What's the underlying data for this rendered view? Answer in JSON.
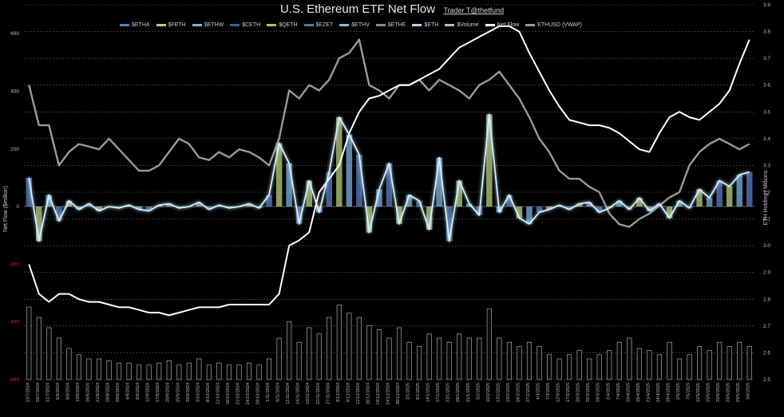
{
  "chart_data": {
    "type": "bar",
    "title": "U.S. Ethereum ETF Net Flow",
    "credit": "Trader T@thetfund",
    "ylabel": "Net Flow ($million)",
    "y2label": "ETH Holding | Millions",
    "ylim": [
      -600,
      700
    ],
    "y2lim": [
      2.5,
      3.9
    ],
    "yticks": [
      "600",
      "400",
      "200",
      "0",
      "-200",
      "-400",
      "-600"
    ],
    "y2ticks": [
      "3.9",
      "3.8",
      "3.7",
      "3.6",
      "3.5",
      "3.4",
      "3.3",
      "3.2",
      "3.1",
      "3.0",
      "2.9",
      "2.8",
      "2.7",
      "2.6",
      "2.5"
    ],
    "legend": [
      {
        "name": "$ETHA",
        "color": "#5b7fc4"
      },
      {
        "name": "$FETH",
        "color": "#b8cf7a"
      },
      {
        "name": "$ETHW",
        "color": "#7ab3e6"
      },
      {
        "name": "$CETH",
        "color": "#3f5fa0"
      },
      {
        "name": "$QETH",
        "color": "#c8c24a"
      },
      {
        "name": "$EZET",
        "color": "#4f7f9c"
      },
      {
        "name": "$ETHV",
        "color": "#8fb8e8"
      },
      {
        "name": "$ETHE",
        "color": "#8c8c8c"
      },
      {
        "name": "$ETH",
        "color": "#a8d8f0"
      },
      {
        "name": "$Volume",
        "color": "#bbbbbb"
      },
      {
        "name": "Net Flow",
        "color": "#ffffff"
      },
      {
        "name": "ETHUSD (VWAP)",
        "color": "#9a9a9a"
      }
    ],
    "x": [
      "23/7/2024",
      "26/7/2024",
      "31/7/2024",
      "5/8/2024",
      "8/8/2024",
      "13/8/2024",
      "16/8/2024",
      "21/8/2024",
      "26/8/2024",
      "29/8/2024",
      "4/9/2024",
      "9/9/2024",
      "12/9/2024",
      "17/9/2024",
      "20/9/2024",
      "25/9/2024",
      "30/9/2024",
      "3/10/2024",
      "8/10/2024",
      "11/10/2024",
      "16/10/2024",
      "21/10/2024",
      "24/10/2024",
      "29/10/2024",
      "1/11/2024",
      "6/11/2024",
      "11/11/2024",
      "14/11/2024",
      "19/11/2024",
      "22/11/2024",
      "27/11/2024",
      "3/12/2024",
      "6/12/2024",
      "11/12/2024",
      "16/12/2024",
      "19/12/2024",
      "24/12/2024",
      "30/12/2024",
      "3/1/2025",
      "8/1/2025",
      "14/1/2025",
      "17/1/2025",
      "23/1/2025",
      "28/1/2025",
      "31/1/2025",
      "5/2/2025",
      "10/2/2025",
      "13/2/2025",
      "19/2/2025",
      "24/2/2025",
      "27/2/2025",
      "4/3/2025",
      "7/3/2025",
      "12/3/2025",
      "17/3/2025",
      "20/3/2025",
      "25/3/2025",
      "28/3/2025",
      "2/4/2025",
      "7/4/2025",
      "10/4/2025",
      "15/4/2025",
      "21/4/2025",
      "24/4/2025",
      "29/4/2025",
      "2/5/2025",
      "7/5/2025",
      "12/5/2025",
      "15/5/2025",
      "20/5/2025",
      "23/5/2025",
      "29/5/2025",
      "3/6/2025"
    ],
    "net_flow": [
      100,
      -120,
      40,
      -50,
      20,
      -10,
      10,
      -15,
      0,
      -5,
      5,
      -10,
      -15,
      5,
      10,
      -5,
      0,
      15,
      -10,
      5,
      -5,
      0,
      10,
      -5,
      40,
      220,
      150,
      -60,
      90,
      -20,
      120,
      310,
      250,
      180,
      -90,
      60,
      150,
      -60,
      40,
      20,
      -80,
      170,
      -120,
      90,
      10,
      -30,
      320,
      -20,
      40,
      -40,
      -60,
      -20,
      -10,
      5,
      -10,
      10,
      15,
      -20,
      -5,
      20,
      -10,
      30,
      -15,
      10,
      -40,
      20,
      -5,
      60,
      30,
      90,
      70,
      110,
      120
    ],
    "eth_holding": [
      2.93,
      2.82,
      2.79,
      2.82,
      2.82,
      2.8,
      2.79,
      2.79,
      2.78,
      2.77,
      2.77,
      2.76,
      2.75,
      2.75,
      2.74,
      2.75,
      2.76,
      2.77,
      2.77,
      2.77,
      2.78,
      2.78,
      2.78,
      2.78,
      2.78,
      2.82,
      3.0,
      3.02,
      3.05,
      3.2,
      3.25,
      3.3,
      3.42,
      3.5,
      3.55,
      3.56,
      3.58,
      3.6,
      3.6,
      3.62,
      3.64,
      3.66,
      3.7,
      3.74,
      3.76,
      3.78,
      3.8,
      3.82,
      3.82,
      3.8,
      3.72,
      3.65,
      3.58,
      3.52,
      3.47,
      3.46,
      3.45,
      3.45,
      3.44,
      3.42,
      3.39,
      3.36,
      3.35,
      3.42,
      3.48,
      3.5,
      3.48,
      3.47,
      3.5,
      3.53,
      3.58,
      3.68,
      3.77
    ],
    "ethusd_vwap": [
      3.6,
      3.45,
      3.45,
      3.3,
      3.35,
      3.38,
      3.37,
      3.36,
      3.4,
      3.36,
      3.32,
      3.28,
      3.28,
      3.3,
      3.35,
      3.4,
      3.38,
      3.33,
      3.32,
      3.35,
      3.33,
      3.36,
      3.35,
      3.33,
      3.3,
      3.4,
      3.58,
      3.55,
      3.6,
      3.58,
      3.62,
      3.7,
      3.72,
      3.77,
      3.6,
      3.58,
      3.55,
      3.6,
      3.6,
      3.62,
      3.58,
      3.62,
      3.6,
      3.58,
      3.55,
      3.6,
      3.62,
      3.65,
      3.6,
      3.55,
      3.48,
      3.4,
      3.35,
      3.28,
      3.25,
      3.25,
      3.22,
      3.2,
      3.12,
      3.08,
      3.07,
      3.1,
      3.12,
      3.15,
      3.18,
      3.2,
      3.3,
      3.35,
      3.38,
      3.4,
      3.38,
      3.36,
      3.38
    ],
    "volume": [
      0.35,
      0.3,
      0.25,
      0.2,
      0.15,
      0.12,
      0.1,
      0.1,
      0.09,
      0.08,
      0.08,
      0.07,
      0.07,
      0.08,
      0.09,
      0.07,
      0.08,
      0.1,
      0.07,
      0.08,
      0.07,
      0.07,
      0.08,
      0.07,
      0.1,
      0.2,
      0.28,
      0.18,
      0.25,
      0.22,
      0.3,
      0.36,
      0.32,
      0.3,
      0.26,
      0.24,
      0.2,
      0.25,
      0.18,
      0.16,
      0.22,
      0.2,
      0.18,
      0.22,
      0.2,
      0.2,
      0.34,
      0.2,
      0.18,
      0.16,
      0.18,
      0.16,
      0.12,
      0.1,
      0.12,
      0.14,
      0.1,
      0.12,
      0.14,
      0.18,
      0.2,
      0.15,
      0.14,
      0.12,
      0.18,
      0.1,
      0.12,
      0.16,
      0.14,
      0.18,
      0.16,
      0.18,
      0.16
    ]
  }
}
